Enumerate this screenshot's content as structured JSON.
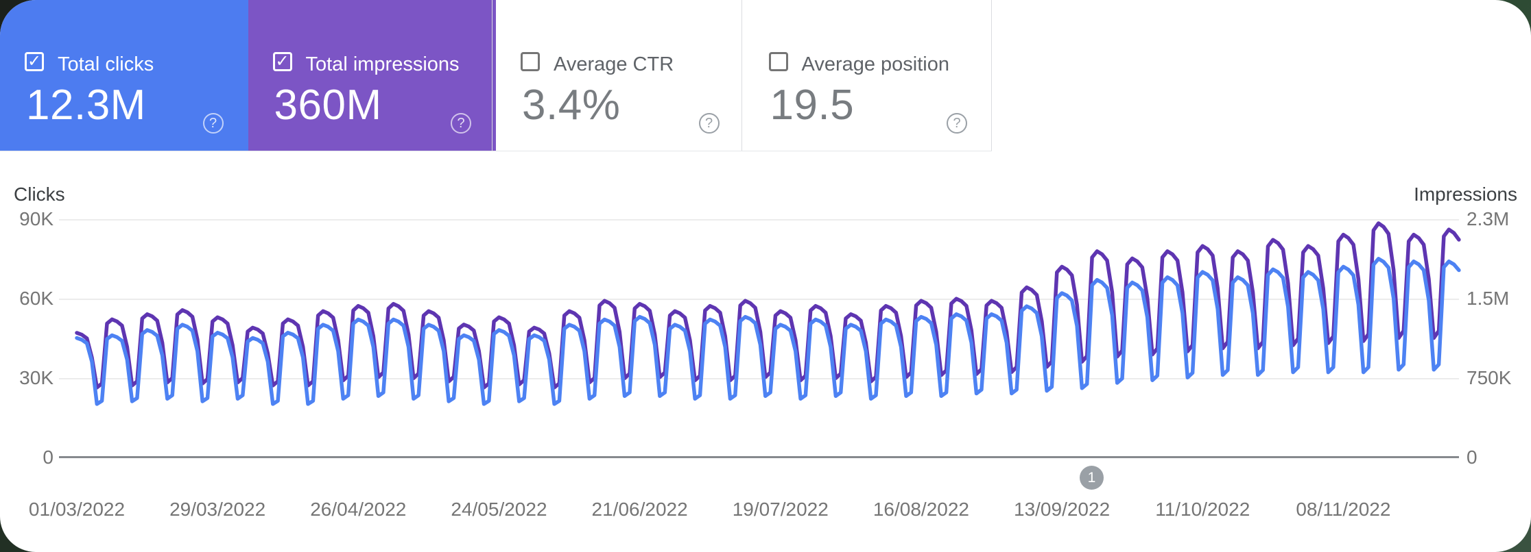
{
  "cards": [
    {
      "label": "Total clicks",
      "value": "12.3M",
      "checked": true,
      "bg": "#4d7cf0",
      "help_glyph": "?"
    },
    {
      "label": "Total impressions",
      "value": "360M",
      "checked": true,
      "bg": "#7c55c5",
      "help_glyph": "?"
    },
    {
      "label": "Average CTR",
      "value": "3.4%",
      "checked": false,
      "bg": "",
      "help_glyph": "?"
    },
    {
      "label": "Average position",
      "value": "19.5",
      "checked": false,
      "bg": "",
      "help_glyph": "?"
    }
  ],
  "chart_data": {
    "type": "line",
    "frequency": "daily",
    "x_start": "01/03/2022",
    "x_end": "01/12/2022",
    "x_tick_labels": [
      "01/03/2022",
      "29/03/2022",
      "26/04/2022",
      "24/05/2022",
      "21/06/2022",
      "19/07/2022",
      "16/08/2022",
      "13/09/2022",
      "11/10/2022",
      "08/11/2022"
    ],
    "left_axis": {
      "title": "Clicks",
      "tick_labels": [
        "90K",
        "60K",
        "30K",
        "0"
      ],
      "tick_values": [
        90000,
        60000,
        30000,
        0
      ],
      "max": 90000
    },
    "right_axis": {
      "title": "Impressions",
      "tick_labels": [
        "2.3M",
        "1.5M",
        "750K",
        "0"
      ],
      "tick_values": [
        2300000,
        1500000,
        750000,
        0
      ],
      "max": 2300000
    },
    "grid": true,
    "legend_position": "none",
    "annotation": {
      "label": "1",
      "approx_date": "20/09/2022"
    },
    "weekday_profile": {
      "mon": 0.97,
      "tue": 1.0,
      "wed": 0.985,
      "thu": 0.955,
      "fri": 0.8,
      "sat": 1.0,
      "sun": 1.06
    },
    "series": [
      {
        "name": "Clicks",
        "axis": "left",
        "color": "#4d82f3",
        "units": "thousands",
        "weekly_peaks": [
          45,
          46,
          48,
          50,
          47,
          45,
          47,
          50,
          52,
          52,
          50,
          46,
          48,
          46,
          50,
          52,
          53,
          50,
          52,
          53,
          50,
          52,
          50,
          52,
          53,
          54,
          54,
          57,
          62,
          67,
          66,
          68,
          70,
          68,
          71,
          70,
          72,
          75,
          74,
          74
        ],
        "weekly_troughs": [
          20,
          21,
          22,
          21,
          22,
          20,
          20,
          22,
          23,
          22,
          21,
          20,
          21,
          20,
          22,
          23,
          23,
          22,
          22,
          23,
          22,
          23,
          22,
          23,
          23,
          24,
          24,
          25,
          26,
          28,
          29,
          30,
          31,
          31,
          32,
          32,
          32,
          33,
          33,
          33
        ]
      },
      {
        "name": "Impressions",
        "axis": "right",
        "color": "#5e35b1",
        "units": "millions",
        "weekly_peaks": [
          1.2,
          1.33,
          1.38,
          1.42,
          1.35,
          1.25,
          1.33,
          1.41,
          1.46,
          1.48,
          1.41,
          1.28,
          1.35,
          1.25,
          1.41,
          1.51,
          1.48,
          1.41,
          1.46,
          1.51,
          1.41,
          1.46,
          1.38,
          1.46,
          1.51,
          1.53,
          1.51,
          1.64,
          1.84,
          1.99,
          1.92,
          1.99,
          2.04,
          1.99,
          2.1,
          2.04,
          2.15,
          2.26,
          2.15,
          2.2
        ],
        "weekly_troughs": [
          0.67,
          0.69,
          0.72,
          0.71,
          0.72,
          0.69,
          0.69,
          0.74,
          0.77,
          0.76,
          0.73,
          0.67,
          0.7,
          0.67,
          0.72,
          0.76,
          0.77,
          0.74,
          0.74,
          0.77,
          0.74,
          0.76,
          0.73,
          0.77,
          0.79,
          0.8,
          0.82,
          0.87,
          0.92,
          0.97,
          0.99,
          1.02,
          1.05,
          1.05,
          1.08,
          1.1,
          1.12,
          1.15,
          1.15,
          1.15
        ]
      }
    ]
  }
}
